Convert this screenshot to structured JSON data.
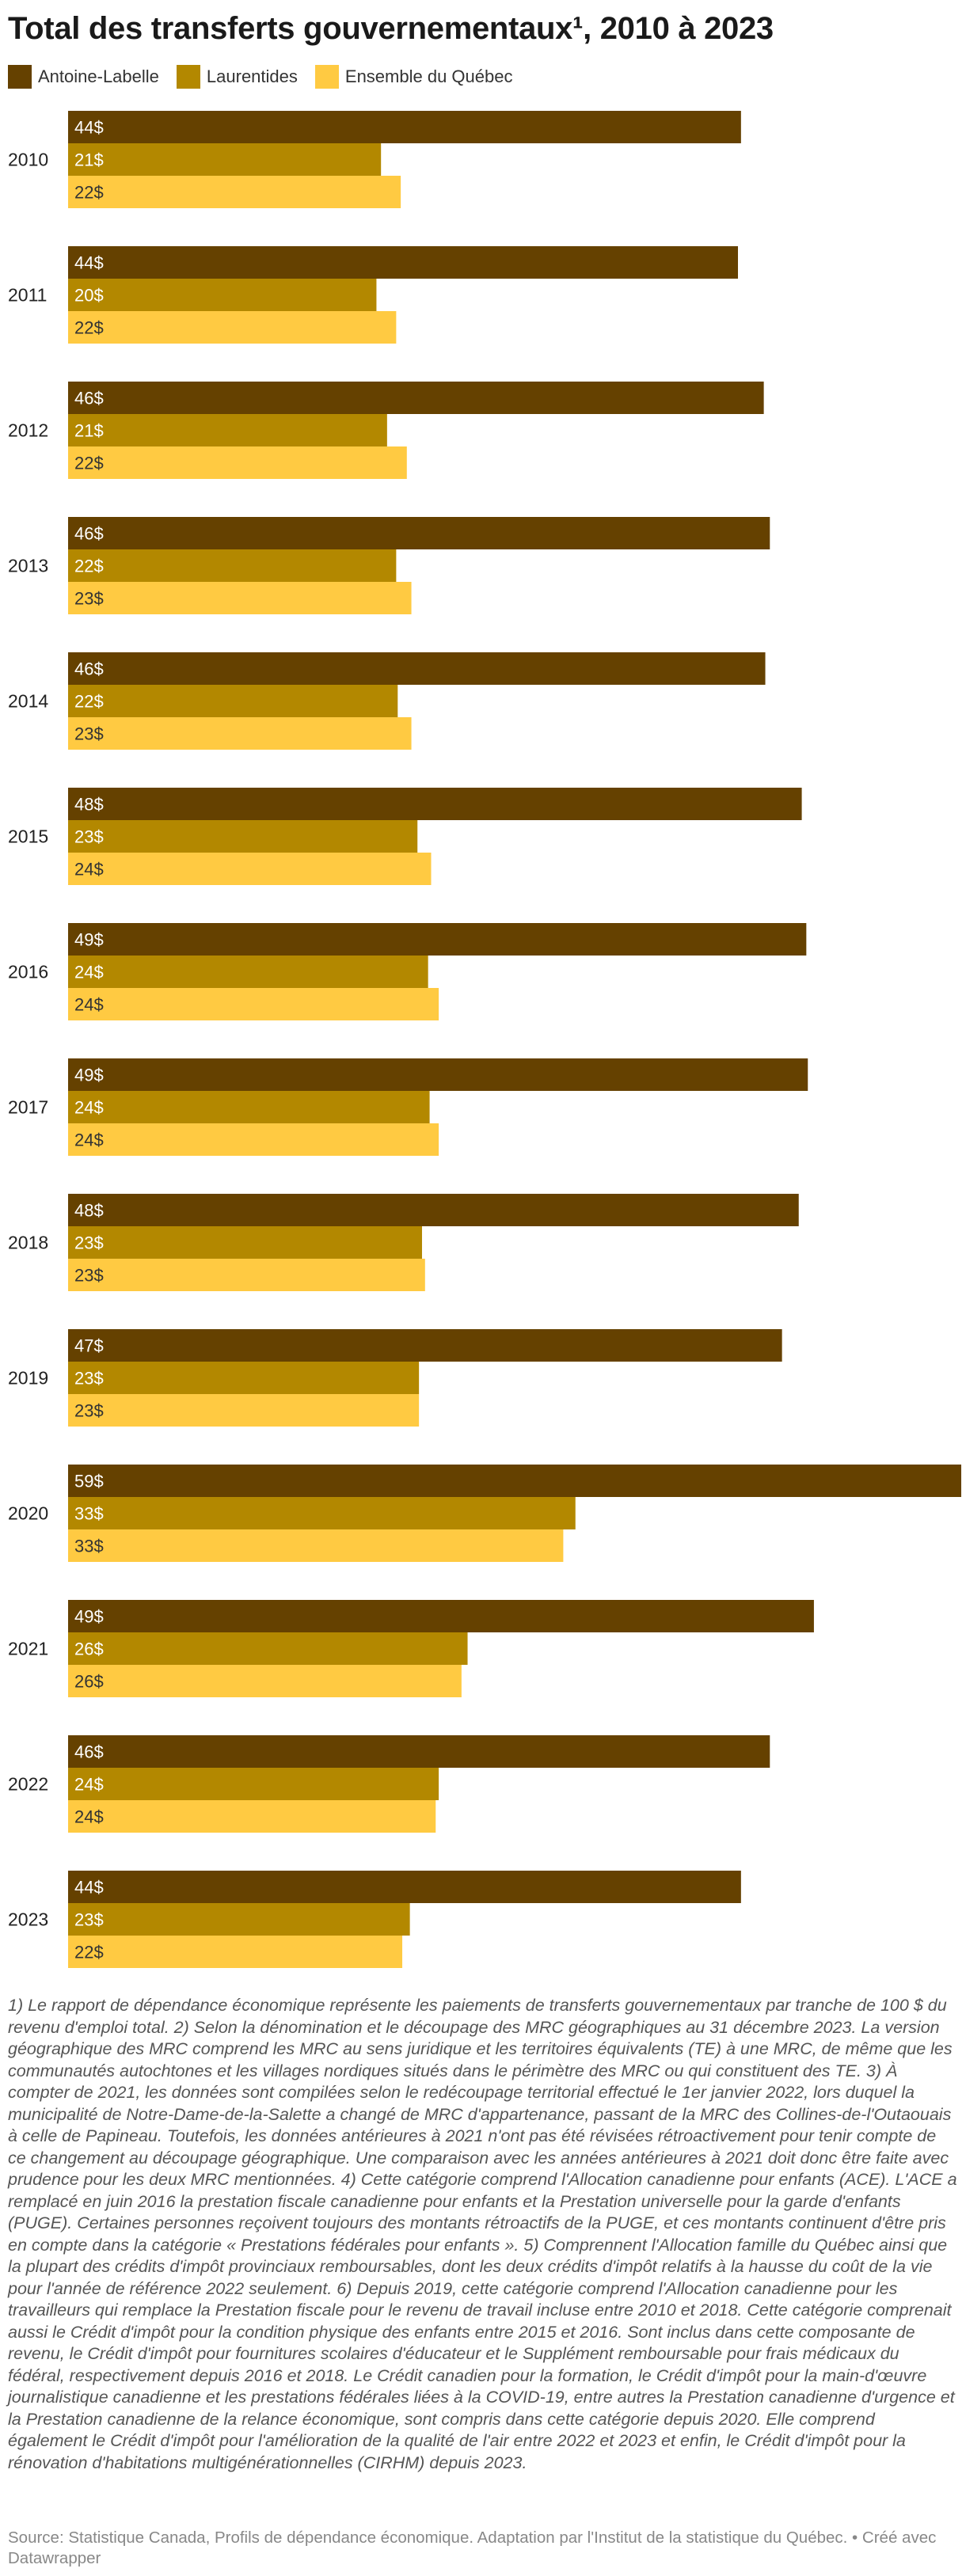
{
  "chart_data": {
    "type": "bar",
    "orientation": "horizontal",
    "title": "Total des transferts gouvernementaux¹, 2010 à 2023",
    "categories": [
      "2010",
      "2011",
      "2012",
      "2013",
      "2014",
      "2015",
      "2016",
      "2017",
      "2018",
      "2019",
      "2020",
      "2021",
      "2022",
      "2023"
    ],
    "series": [
      {
        "name": "Antoine-Labelle",
        "color": "#654100",
        "values": [
          44.3,
          44.1,
          45.8,
          46.2,
          45.9,
          48.3,
          48.6,
          48.7,
          48.1,
          47.0,
          58.8,
          49.1,
          46.2,
          44.3
        ],
        "labels": [
          "44$",
          "44$",
          "46$",
          "46$",
          "46$",
          "48$",
          "49$",
          "49$",
          "48$",
          "47$",
          "59$",
          "49$",
          "46$",
          "44$"
        ]
      },
      {
        "name": "Laurentides",
        "color": "#b38800",
        "values": [
          20.6,
          20.3,
          21.0,
          21.6,
          21.7,
          23.0,
          23.7,
          23.8,
          23.3,
          23.1,
          33.4,
          26.3,
          24.4,
          22.5
        ],
        "labels": [
          "21$",
          "20$",
          "21$",
          "22$",
          "22$",
          "23$",
          "24$",
          "24$",
          "23$",
          "23$",
          "33$",
          "26$",
          "24$",
          "23$"
        ]
      },
      {
        "name": "Ensemble du Québec",
        "color": "#ffca42",
        "values": [
          21.9,
          21.6,
          22.3,
          22.6,
          22.6,
          23.9,
          24.4,
          24.4,
          23.5,
          23.1,
          32.6,
          25.9,
          24.2,
          22.0
        ],
        "labels": [
          "22$",
          "22$",
          "22$",
          "23$",
          "23$",
          "24$",
          "24$",
          "24$",
          "23$",
          "23$",
          "33$",
          "26$",
          "24$",
          "22$"
        ]
      }
    ],
    "xlim": [
      0,
      58.8
    ],
    "legend_position": "top-left",
    "grid": false
  },
  "notes": "1) Le rapport de dépendance économique représente les paiements de transferts gouvernementaux par tranche de 100 $ du revenu d'emploi total. 2) Selon la dénomination et le découpage des MRC géographiques au 31 décembre 2023. La version géographique des MRC comprend les MRC au sens juridique et les territoires équivalents (TE) à une MRC, de même que les communautés autochtones et les villages nordiques situés dans le périmètre des MRC ou qui constituent des TE. 3) À compter de 2021, les données sont compilées selon le redécoupage territorial effectué le 1er janvier 2022, lors duquel la municipalité de Notre-Dame-de-la-Salette a changé de MRC d'appartenance, passant de la MRC des Collines-de-l'Outaouais à celle de Papineau. Toutefois, les données antérieures à 2021 n'ont pas été révisées rétroactivement pour tenir compte de ce changement au découpage géographique. Une comparaison avec les années antérieures à 2021 doit donc être faite avec prudence pour les deux MRC mentionnées. 4) Cette catégorie comprend l'Allocation canadienne pour enfants (ACE). L'ACE a remplacé en juin 2016 la prestation fiscale canadienne pour enfants et la Prestation universelle pour la garde d'enfants (PUGE). Certaines personnes reçoivent toujours des montants rétroactifs de la PUGE, et ces montants continuent d'être pris en compte dans la catégorie « Prestations fédérales pour enfants ». 5) Comprennent l'Allocation famille du Québec ainsi que la plupart des crédits d'impôt provinciaux remboursables, dont les deux crédits d'impôt relatifs à la hausse du coût de la vie pour l'année de référence 2022 seulement. 6) Depuis 2019, cette catégorie comprend l'Allocation canadienne pour les travailleurs qui remplace la Prestation fiscale pour le revenu de travail incluse entre 2010 et 2018. Cette catégorie comprenait aussi le Crédit d'impôt pour la condition physique des enfants entre 2015 et 2016. Sont inclus dans cette composante de revenu, le Crédit d'impôt pour fournitures scolaires d'éducateur et le Supplément remboursable pour frais médicaux du fédéral, respectivement depuis 2016 et 2018. Le Crédit canadien pour la formation, le Crédit d'impôt pour la main-d'œuvre journalistique canadienne et les prestations fédérales liées à la COVID-19, entre autres la Prestation canadienne d'urgence et la Prestation canadienne de la relance économique, sont compris dans cette catégorie depuis 2020. Elle comprend également le Crédit d'impôt pour l'amélioration de la qualité de l'air entre 2022 et 2023 et enfin, le Crédit d'impôt pour la rénovation d'habitations multigénérationnelles (CIRHM) depuis 2023.",
  "source": "Source: Statistique Canada, Profils de dépendance économique. Adaptation par l'Institut de la statistique du Québec. • Créé avec Datawrapper"
}
